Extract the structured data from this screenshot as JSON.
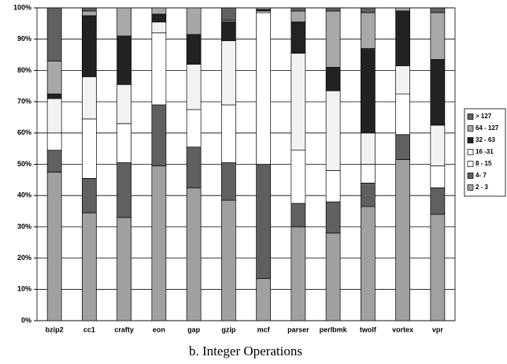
{
  "chart_data": {
    "type": "stacked-bar",
    "title": "b. Integer Operations",
    "categories": [
      "bzip2",
      "cc1",
      "crafty",
      "eon",
      "gap",
      "gzip",
      "mcf",
      "parser",
      "perlbmk",
      "twolf",
      "vortex",
      "vpr"
    ],
    "series": [
      {
        "name": "2 - 3",
        "color": "#a0a0a0",
        "values": [
          47.5,
          34.5,
          33,
          49.5,
          42.5,
          38.5,
          13.5,
          30,
          28,
          36.5,
          51.5,
          34
        ]
      },
      {
        "name": "4- 7",
        "color": "#606060",
        "values": [
          7,
          11,
          17.5,
          19.5,
          13,
          12,
          36.5,
          7.5,
          10,
          7.5,
          8,
          8.5
        ]
      },
      {
        "name": "8 - 15",
        "color": "#ffffff",
        "values": [
          5.5,
          19,
          12.5,
          23,
          12,
          18.5,
          48.5,
          17,
          10,
          6,
          13,
          7
        ]
      },
      {
        "name": "16 -31",
        "color": "#f2f2f2",
        "values": [
          11,
          13.5,
          12.5,
          3.5,
          14.5,
          20.5,
          0.5,
          31,
          25.5,
          10,
          9,
          13
        ]
      },
      {
        "name": "32 - 63",
        "color": "#222222",
        "values": [
          1.5,
          19.5,
          15.5,
          2.5,
          9.5,
          6,
          0.5,
          10,
          7.5,
          27,
          17.5,
          21
        ]
      },
      {
        "name": "64 - 127",
        "color": "#a8a8a8",
        "values": [
          10.5,
          1.5,
          9,
          2,
          8.5,
          0.5,
          0.5,
          3.5,
          18,
          11.5,
          1,
          15
        ]
      },
      {
        "name": "> 127",
        "color": "#606060",
        "values": [
          17,
          1,
          0,
          0,
          0,
          4,
          0,
          1,
          1,
          1.5,
          0,
          1.5
        ]
      }
    ],
    "ylim": [
      0,
      100
    ],
    "yticks": [
      {
        "value": 0,
        "label": "0%"
      },
      {
        "value": 10,
        "label": "10%"
      },
      {
        "value": 20,
        "label": "20%"
      },
      {
        "value": 30,
        "label": "30%"
      },
      {
        "value": 40,
        "label": "40%"
      },
      {
        "value": 50,
        "label": "50%"
      },
      {
        "value": 60,
        "label": "60%"
      },
      {
        "value": 70,
        "label": "70%"
      },
      {
        "value": 80,
        "label": "80%"
      },
      {
        "value": 90,
        "label": "90%"
      },
      {
        "value": 100,
        "label": "100%"
      }
    ],
    "grid": true,
    "legend": "right"
  }
}
